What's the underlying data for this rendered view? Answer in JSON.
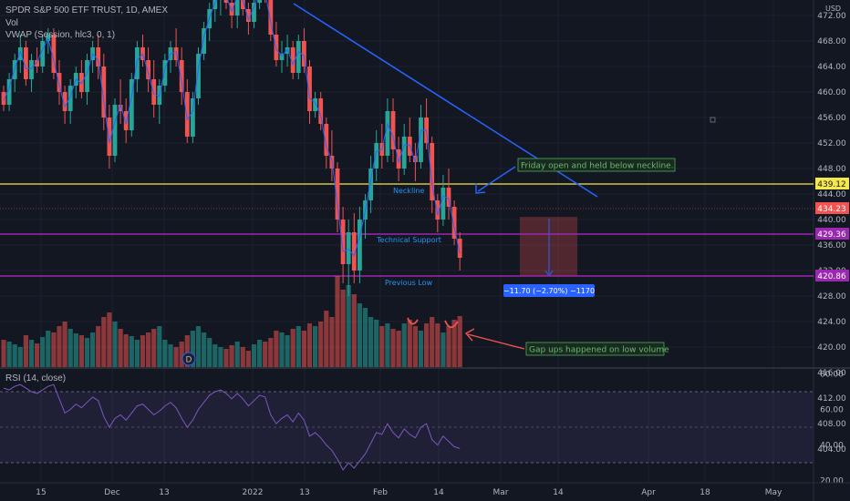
{
  "header": {
    "symbol": "SPDR S&P 500 ETF TRUST, 1D, AMEX",
    "vol": "Vol",
    "vwap": "VWAP (Session, hlc3, 0, 1)",
    "rsi": "RSI (14, close)"
  },
  "price_axis": {
    "currency": "USD",
    "ticks": [
      "472.00",
      "468.00",
      "464.00",
      "460.00",
      "456.00",
      "452.00",
      "448.00",
      "444.00",
      "440.00",
      "436.00",
      "432.00",
      "428.00",
      "424.00",
      "420.00",
      "416.00",
      "412.00",
      "408.00",
      "404.00"
    ]
  },
  "rsi_axis": {
    "ticks": [
      "80.00",
      "60.00",
      "40.00",
      "20.00"
    ]
  },
  "time_axis": {
    "labels": [
      "15",
      "Dec",
      "13",
      "2022",
      "13",
      "Feb",
      "14",
      "Mar",
      "14",
      "Apr",
      "18",
      "May"
    ]
  },
  "levels": {
    "neckline": {
      "value": "439.12",
      "label": "Neckline",
      "color": "#f5e74c"
    },
    "last": {
      "value": "434.23",
      "color": "#f05350"
    },
    "support": {
      "value": "429.36",
      "label": "Technical Support",
      "color": "#9c27b0"
    },
    "prev_low": {
      "value": "420.86",
      "label": "Previous Low",
      "color": "#9c27b0"
    }
  },
  "annotations": {
    "friday": "Friday open and held below neckline.",
    "gap": "Gap ups happened on low volume",
    "measure": "−11.70 (−2.70%) −1170",
    "event": "D"
  },
  "chart_data": {
    "type": "candlestick",
    "ylim": [
      403,
      475
    ],
    "rsi_range": [
      15,
      85
    ],
    "rsi_levels": [
      70,
      30
    ],
    "candles": [
      [
        460,
        461,
        457,
        458
      ],
      [
        458,
        463,
        457,
        462
      ],
      [
        462,
        466,
        460,
        465
      ],
      [
        465,
        469,
        463,
        467
      ],
      [
        467,
        468,
        461,
        462
      ],
      [
        462,
        466,
        460,
        465
      ],
      [
        465,
        467,
        463,
        464
      ],
      [
        464,
        469,
        463,
        468
      ],
      [
        468,
        470,
        466,
        469
      ],
      [
        469,
        470,
        462,
        463
      ],
      [
        463,
        465,
        458,
        460
      ],
      [
        460,
        461,
        455,
        457
      ],
      [
        457,
        462,
        455,
        461
      ],
      [
        461,
        464,
        459,
        463
      ],
      [
        463,
        465,
        459,
        460
      ],
      [
        460,
        466,
        458,
        465
      ],
      [
        465,
        468,
        463,
        467
      ],
      [
        467,
        469,
        462,
        464
      ],
      [
        464,
        466,
        454,
        456
      ],
      [
        456,
        458,
        448,
        450
      ],
      [
        450,
        459,
        449,
        458
      ],
      [
        458,
        462,
        455,
        457
      ],
      [
        457,
        459,
        452,
        454
      ],
      [
        454,
        463,
        453,
        462
      ],
      [
        462,
        468,
        460,
        467
      ],
      [
        467,
        469,
        464,
        465
      ],
      [
        465,
        467,
        460,
        462
      ],
      [
        462,
        465,
        456,
        458
      ],
      [
        458,
        462,
        455,
        461
      ],
      [
        461,
        466,
        460,
        465
      ],
      [
        465,
        468,
        463,
        467
      ],
      [
        467,
        470,
        464,
        465
      ],
      [
        465,
        467,
        458,
        460
      ],
      [
        460,
        462,
        452,
        453
      ],
      [
        453,
        460,
        452,
        459
      ],
      [
        459,
        467,
        458,
        466
      ],
      [
        466,
        471,
        465,
        470
      ],
      [
        470,
        474,
        468,
        473
      ],
      [
        473,
        476,
        471,
        475
      ],
      [
        475,
        478,
        472,
        476
      ],
      [
        476,
        478,
        473,
        474
      ],
      [
        474,
        476,
        470,
        472
      ],
      [
        472,
        478,
        470,
        477
      ],
      [
        477,
        478,
        472,
        473
      ],
      [
        473,
        474,
        469,
        471
      ],
      [
        471,
        476,
        470,
        474
      ],
      [
        474,
        478,
        473,
        477
      ],
      [
        477,
        478,
        474,
        475
      ],
      [
        475,
        476,
        468,
        469
      ],
      [
        469,
        471,
        464,
        465
      ],
      [
        465,
        468,
        463,
        466
      ],
      [
        466,
        469,
        464,
        467
      ],
      [
        467,
        468,
        462,
        463
      ],
      [
        463,
        469,
        462,
        468
      ],
      [
        468,
        470,
        463,
        464
      ],
      [
        464,
        465,
        455,
        457
      ],
      [
        457,
        460,
        456,
        459
      ],
      [
        459,
        460,
        454,
        455
      ],
      [
        455,
        456,
        448,
        450
      ],
      [
        450,
        454,
        446,
        448
      ],
      [
        448,
        449,
        438,
        440
      ],
      [
        440,
        442,
        430,
        433
      ],
      [
        433,
        440,
        428,
        438
      ],
      [
        438,
        441,
        430,
        432
      ],
      [
        432,
        442,
        430,
        440
      ],
      [
        440,
        444,
        437,
        443
      ],
      [
        443,
        450,
        441,
        448
      ],
      [
        448,
        454,
        446,
        452
      ],
      [
        452,
        455,
        448,
        450
      ],
      [
        450,
        459,
        449,
        457
      ],
      [
        457,
        459,
        449,
        451
      ],
      [
        451,
        453,
        446,
        448
      ],
      [
        448,
        455,
        447,
        453
      ],
      [
        453,
        456,
        449,
        450
      ],
      [
        450,
        452,
        446,
        449
      ],
      [
        449,
        458,
        448,
        456
      ],
      [
        456,
        459,
        451,
        452
      ],
      [
        452,
        453,
        441,
        443
      ],
      [
        443,
        444,
        438,
        440
      ],
      [
        440,
        447,
        439,
        445
      ],
      [
        445,
        448,
        440,
        442
      ],
      [
        442,
        443,
        436,
        437
      ],
      [
        437,
        438,
        432,
        434
      ]
    ],
    "volume": [
      0.3,
      0.28,
      0.25,
      0.22,
      0.35,
      0.3,
      0.26,
      0.33,
      0.4,
      0.38,
      0.45,
      0.5,
      0.42,
      0.37,
      0.35,
      0.32,
      0.38,
      0.45,
      0.55,
      0.6,
      0.5,
      0.42,
      0.36,
      0.34,
      0.3,
      0.35,
      0.38,
      0.42,
      0.45,
      0.3,
      0.25,
      0.22,
      0.28,
      0.35,
      0.4,
      0.45,
      0.38,
      0.32,
      0.25,
      0.22,
      0.2,
      0.24,
      0.28,
      0.22,
      0.18,
      0.25,
      0.3,
      0.28,
      0.32,
      0.4,
      0.38,
      0.35,
      0.42,
      0.45,
      0.4,
      0.48,
      0.45,
      0.5,
      0.62,
      0.55,
      1.0,
      0.85,
      0.9,
      0.8,
      0.7,
      0.65,
      0.55,
      0.52,
      0.45,
      0.48,
      0.42,
      0.4,
      0.48,
      0.52,
      0.45,
      0.4,
      0.48,
      0.55,
      0.48,
      0.38,
      0.45,
      0.52,
      0.56
    ],
    "rsi": [
      72,
      71,
      73,
      74,
      72,
      70,
      69,
      71,
      73,
      74,
      66,
      58,
      60,
      63,
      61,
      64,
      67,
      65,
      56,
      50,
      55,
      57,
      54,
      58,
      62,
      63,
      60,
      57,
      59,
      62,
      64,
      61,
      55,
      50,
      54,
      60,
      64,
      68,
      70,
      71,
      69,
      66,
      69,
      66,
      62,
      65,
      68,
      67,
      57,
      52,
      55,
      57,
      53,
      58,
      54,
      45,
      47,
      44,
      40,
      37,
      32,
      26,
      30,
      27,
      31,
      35,
      41,
      47,
      46,
      52,
      47,
      44,
      49,
      46,
      44,
      50,
      52,
      43,
      40,
      45,
      42,
      39,
      38
    ],
    "vwap_color": "#2962ff"
  }
}
